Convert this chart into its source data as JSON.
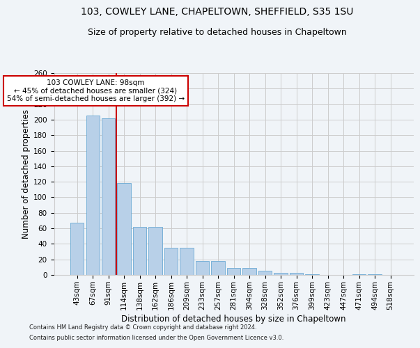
{
  "title1": "103, COWLEY LANE, CHAPELTOWN, SHEFFIELD, S35 1SU",
  "title2": "Size of property relative to detached houses in Chapeltown",
  "xlabel": "Distribution of detached houses by size in Chapeltown",
  "ylabel": "Number of detached properties",
  "footnote1": "Contains HM Land Registry data © Crown copyright and database right 2024.",
  "footnote2": "Contains public sector information licensed under the Open Government Licence v3.0.",
  "categories": [
    "43sqm",
    "67sqm",
    "91sqm",
    "114sqm",
    "138sqm",
    "162sqm",
    "186sqm",
    "209sqm",
    "233sqm",
    "257sqm",
    "281sqm",
    "304sqm",
    "328sqm",
    "352sqm",
    "376sqm",
    "399sqm",
    "423sqm",
    "447sqm",
    "471sqm",
    "494sqm",
    "518sqm"
  ],
  "bar_heights": [
    67,
    205,
    202,
    118,
    62,
    62,
    35,
    35,
    18,
    18,
    9,
    9,
    5,
    3,
    3,
    1,
    0,
    0,
    1,
    1,
    0
  ],
  "bar_color": "#b8d0e8",
  "bar_edge_color": "#6aaad4",
  "vline_x": 2.5,
  "vline_color": "#cc0000",
  "annotation_text": "103 COWLEY LANE: 98sqm\n← 45% of detached houses are smaller (324)\n54% of semi-detached houses are larger (392) →",
  "annotation_box_color": "#ffffff",
  "annotation_box_edge": "#cc0000",
  "ylim": [
    0,
    260
  ],
  "yticks": [
    0,
    20,
    40,
    60,
    80,
    100,
    120,
    140,
    160,
    180,
    200,
    220,
    240,
    260
  ],
  "bg_color": "#f0f4f8",
  "grid_color": "#cccccc",
  "title_fontsize": 10,
  "subtitle_fontsize": 9,
  "axis_label_fontsize": 8.5,
  "tick_fontsize": 7.5,
  "annot_fontsize": 7.5
}
